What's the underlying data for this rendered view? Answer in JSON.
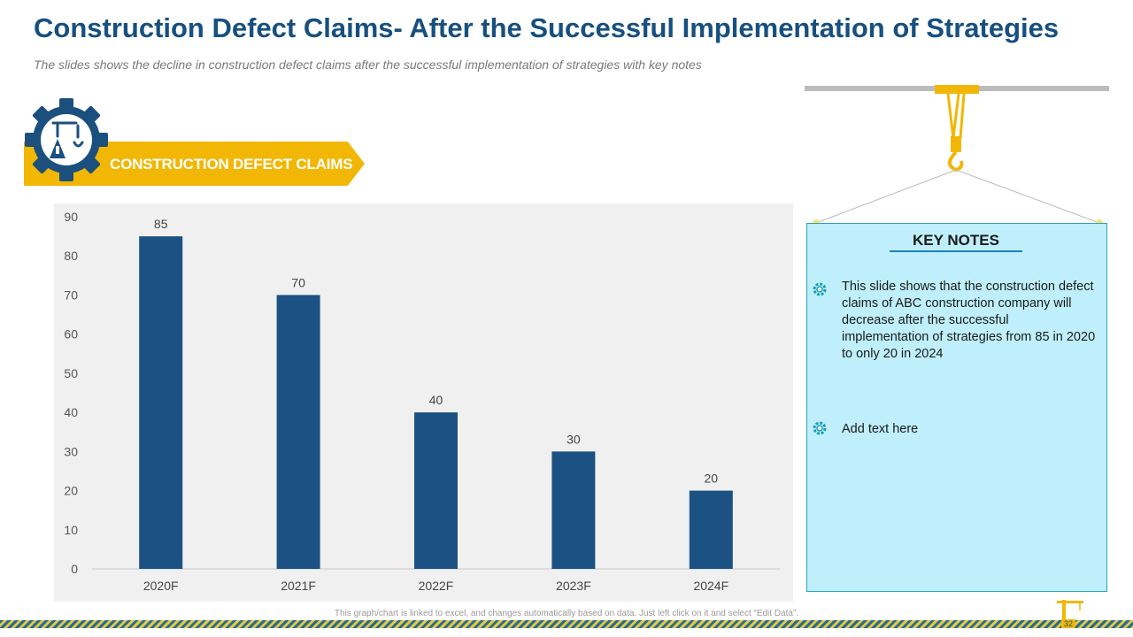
{
  "header": {
    "title": "Construction Defect Claims- After the Successful Implementation of Strategies",
    "subtitle": "The slides shows  the decline in construction defect claims after the successful implementation of strategies with  key notes"
  },
  "badge": {
    "label": "CONSTRUCTION DEFECT CLAIMS",
    "icon": "crane-gear-icon"
  },
  "chart_data": {
    "type": "bar",
    "title": "",
    "xlabel": "",
    "ylabel": "",
    "categories": [
      "2020F",
      "2021F",
      "2022F",
      "2023F",
      "2024F"
    ],
    "values": [
      85,
      70,
      40,
      30,
      20
    ],
    "ylim": [
      0,
      90
    ],
    "yticks": [
      0,
      10,
      20,
      30,
      40,
      50,
      60,
      70,
      80,
      90
    ],
    "bar_color": "#1b5283",
    "grid": false
  },
  "notes": {
    "heading": "KEY NOTES",
    "items": [
      "This slide shows that the construction defect claims of ABC construction company will decrease after the successful implementation of strategies from 85 in 2020 to only 20 in 2024",
      "Add text here"
    ]
  },
  "footer": {
    "note": "This graph/chart is linked to excel, and changes automatically based on data. Just left click on it and select “Edit Data”.",
    "page_number": "32"
  },
  "colors": {
    "title": "#17507f",
    "accent_yellow": "#f2b705",
    "bar": "#1b5283",
    "notes_bg": "#bfeffb",
    "notes_icon": "#1a9fb3"
  }
}
